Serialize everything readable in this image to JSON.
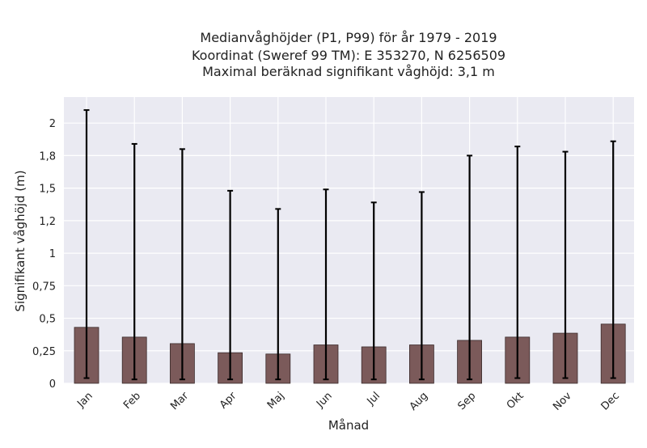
{
  "chart_data": {
    "type": "bar",
    "title_lines": [
      "Medianvåghöjder (P1, P99) för år 1979 - 2019",
      "Koordinat (Sweref 99 TM): E 353270, N 6256509",
      "Maximal beräknad signifikant våghöjd: 3,1 m"
    ],
    "xlabel": "Månad",
    "ylabel": "Signifikant våghöjd (m)",
    "categories": [
      "Jan",
      "Feb",
      "Mar",
      "Apr",
      "Maj",
      "Jun",
      "Jul",
      "Aug",
      "Sep",
      "Okt",
      "Nov",
      "Dec"
    ],
    "series": [
      {
        "values": [
          0.43,
          0.355,
          0.305,
          0.235,
          0.225,
          0.295,
          0.28,
          0.295,
          0.33,
          0.355,
          0.385,
          0.455
        ],
        "p1": [
          0.04,
          0.03,
          0.03,
          0.03,
          0.03,
          0.03,
          0.03,
          0.03,
          0.03,
          0.04,
          0.04,
          0.04
        ],
        "p99": [
          2.1,
          1.84,
          1.8,
          1.48,
          1.34,
          1.49,
          1.39,
          1.47,
          1.75,
          1.82,
          1.78,
          1.86
        ]
      }
    ],
    "yticks": [
      0,
      0.25,
      0.5,
      0.75,
      1,
      1.25,
      1.5,
      1.75,
      2
    ],
    "ytick_labels": [
      "0",
      "0,25",
      "0,5",
      "0,75",
      "1",
      "1,2",
      "1,5",
      "1,8",
      "2"
    ],
    "ylim": [
      0,
      2.2
    ],
    "grid": true,
    "colors": {
      "bar": "#7b5a5a",
      "bar_edge": "#3a2a2a",
      "error": "#000000",
      "plot_bg": "#eaeaf2",
      "grid": "#ffffff"
    }
  }
}
